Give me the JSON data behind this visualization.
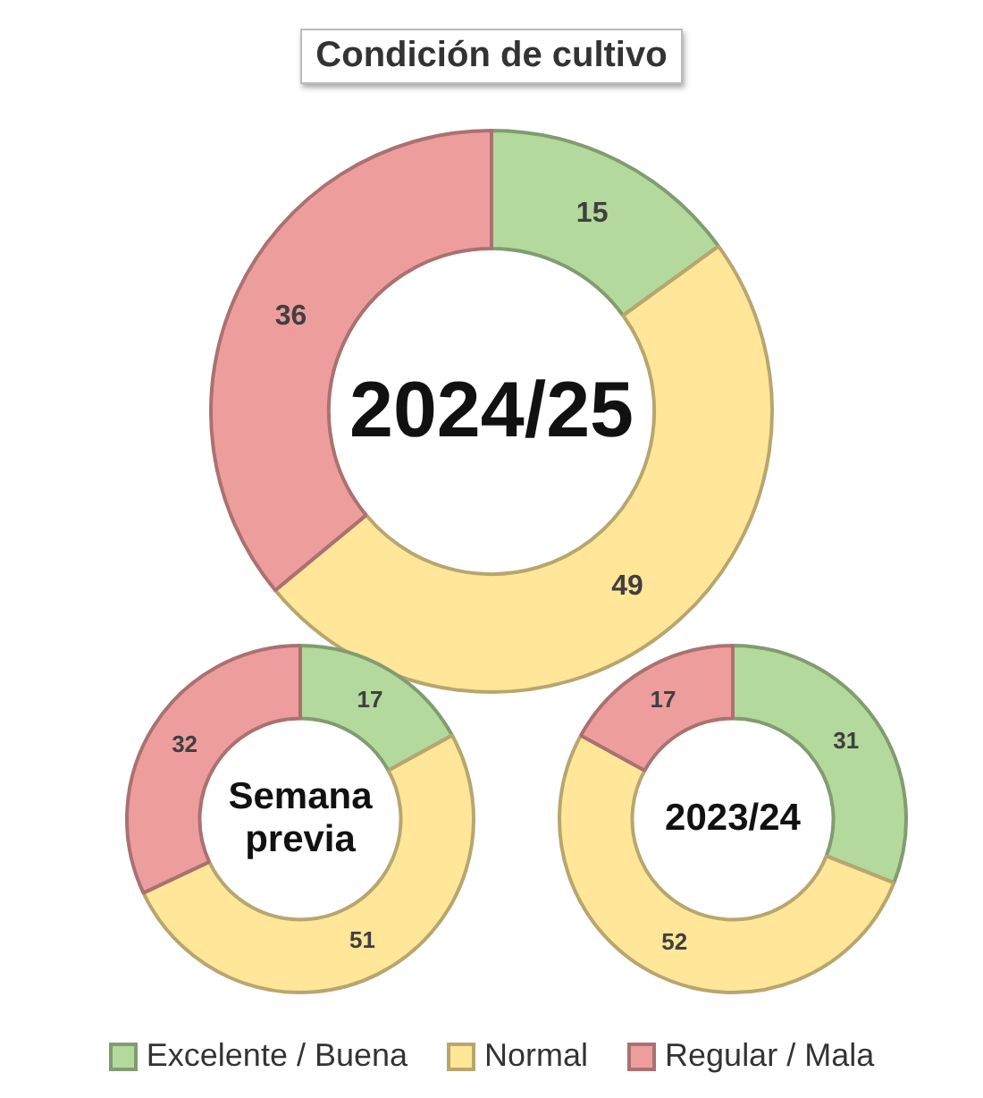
{
  "chart_data": [
    {
      "type": "donut",
      "title": "2024/25",
      "annotations": [
        "Condición de cultivo"
      ],
      "categories": [
        "Excelente / Buena",
        "Normal",
        "Regular / Mala"
      ],
      "values": [
        15,
        49,
        36
      ],
      "colors": [
        "#b3d99c",
        "#ffe699",
        "#ee9d9d"
      ],
      "data_labels": true,
      "legend": "bottom"
    },
    {
      "type": "donut",
      "title": "Semana previa",
      "categories": [
        null,
        null,
        null
      ],
      "values": [
        17,
        51,
        32
      ],
      "colors": [
        "#b3d99c",
        "#ffe699",
        "#ee9d9d"
      ],
      "data_labels": true
    },
    {
      "type": "donut",
      "title": "2023/24",
      "categories": [
        null,
        null,
        null
      ],
      "values": [
        31,
        52,
        17
      ],
      "colors": [
        "#b3d99c",
        "#ffe699",
        "#ee9d9d"
      ],
      "data_labels": true
    }
  ]
}
